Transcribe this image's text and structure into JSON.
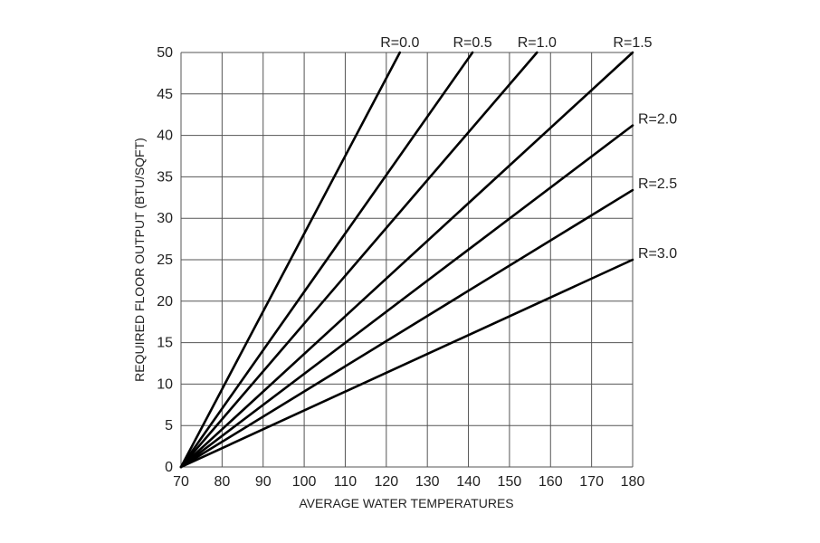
{
  "chart_data": {
    "type": "line",
    "title": "",
    "xlabel": "AVERAGE WATER TEMPERATURES",
    "ylabel": "REQUIRED FLOOR OUTPUT (BTU/SQFT)",
    "xlim": [
      70,
      180
    ],
    "ylim": [
      0,
      50
    ],
    "x_ticks": [
      "70",
      "80",
      "90",
      "100",
      "110",
      "120",
      "130",
      "140",
      "150",
      "160",
      "170",
      "180"
    ],
    "y_ticks": [
      "0",
      "5",
      "10",
      "15",
      "20",
      "25",
      "30",
      "35",
      "40",
      "45",
      "50"
    ],
    "grid": true,
    "series": [
      {
        "name": "R=0.0",
        "x": [
          70,
          123.3
        ],
        "y": [
          0,
          50
        ]
      },
      {
        "name": "R=0.5",
        "x": [
          70,
          141
        ],
        "y": [
          0,
          50
        ]
      },
      {
        "name": "R=1.0",
        "x": [
          70,
          156.7
        ],
        "y": [
          0,
          50
        ]
      },
      {
        "name": "R=1.5",
        "x": [
          70,
          180
        ],
        "y": [
          0,
          50
        ]
      },
      {
        "name": "R=2.0",
        "x": [
          70,
          180
        ],
        "y": [
          0,
          41.2
        ]
      },
      {
        "name": "R=2.5",
        "x": [
          70,
          180
        ],
        "y": [
          0,
          33.4
        ]
      },
      {
        "name": "R=3.0",
        "x": [
          70,
          180
        ],
        "y": [
          0,
          25
        ]
      }
    ],
    "line_color": "#000000",
    "grid_color": "#555555"
  }
}
